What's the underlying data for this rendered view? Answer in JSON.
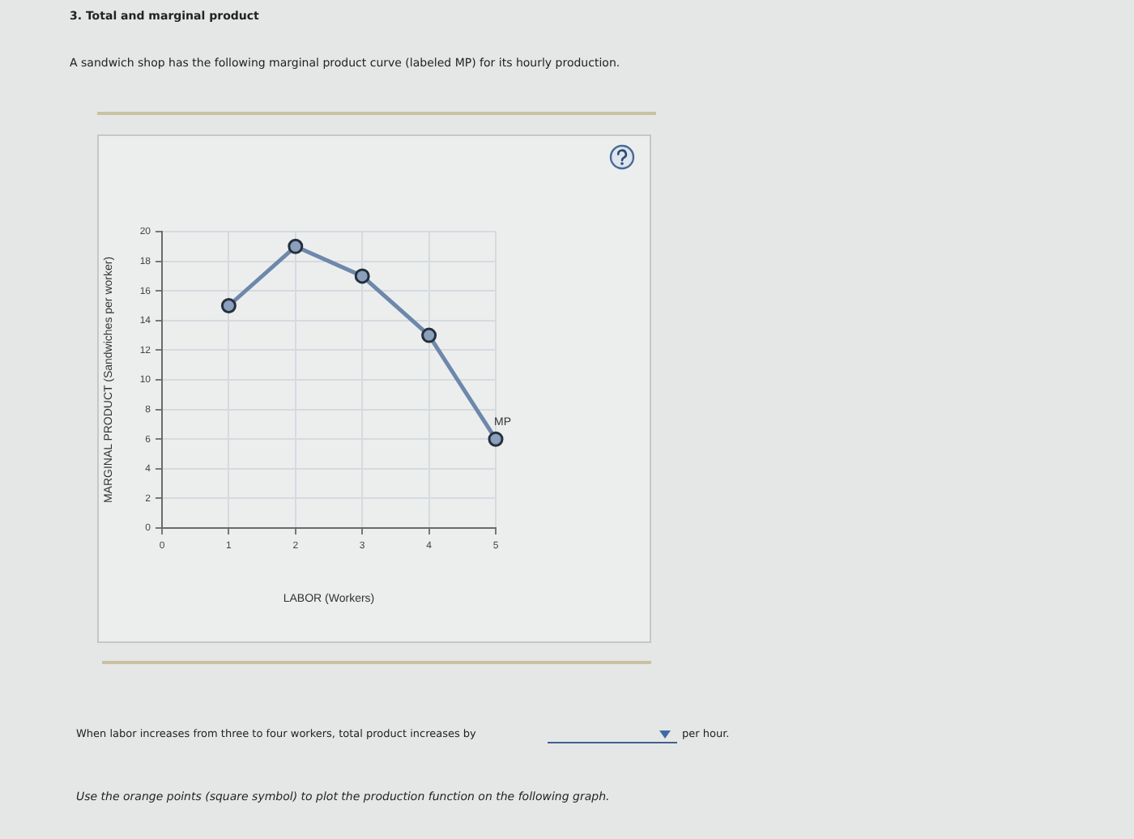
{
  "chart_data": {
    "type": "line",
    "title": "3. Total and marginal product",
    "subtitle": "A sandwich shop has the following marginal product curve (labeled MP) for its hourly production.",
    "xlabel": "LABOR (Workers)",
    "ylabel": "MARGINAL PRODUCT (Sandwiches per worker)",
    "x": [
      1,
      2,
      3,
      4,
      5
    ],
    "series": [
      {
        "name": "MP",
        "color": "#6d88ab",
        "values": [
          15,
          19,
          17,
          13,
          6
        ]
      }
    ],
    "xlim": [
      0,
      5
    ],
    "xticks": [
      0,
      1,
      2,
      3,
      4,
      5
    ],
    "ylim": [
      0,
      20
    ],
    "yticks": [
      0,
      2,
      4,
      6,
      8,
      10,
      12,
      14,
      16,
      18,
      20
    ],
    "grid": true,
    "legend": false,
    "marker": "circle",
    "line_style": "solid",
    "annotations": [
      "When labor increases from three to four workers, total product increases by",
      "per hour.",
      "Use the orange points (square symbol) to plot the production function on the following graph."
    ]
  }
}
